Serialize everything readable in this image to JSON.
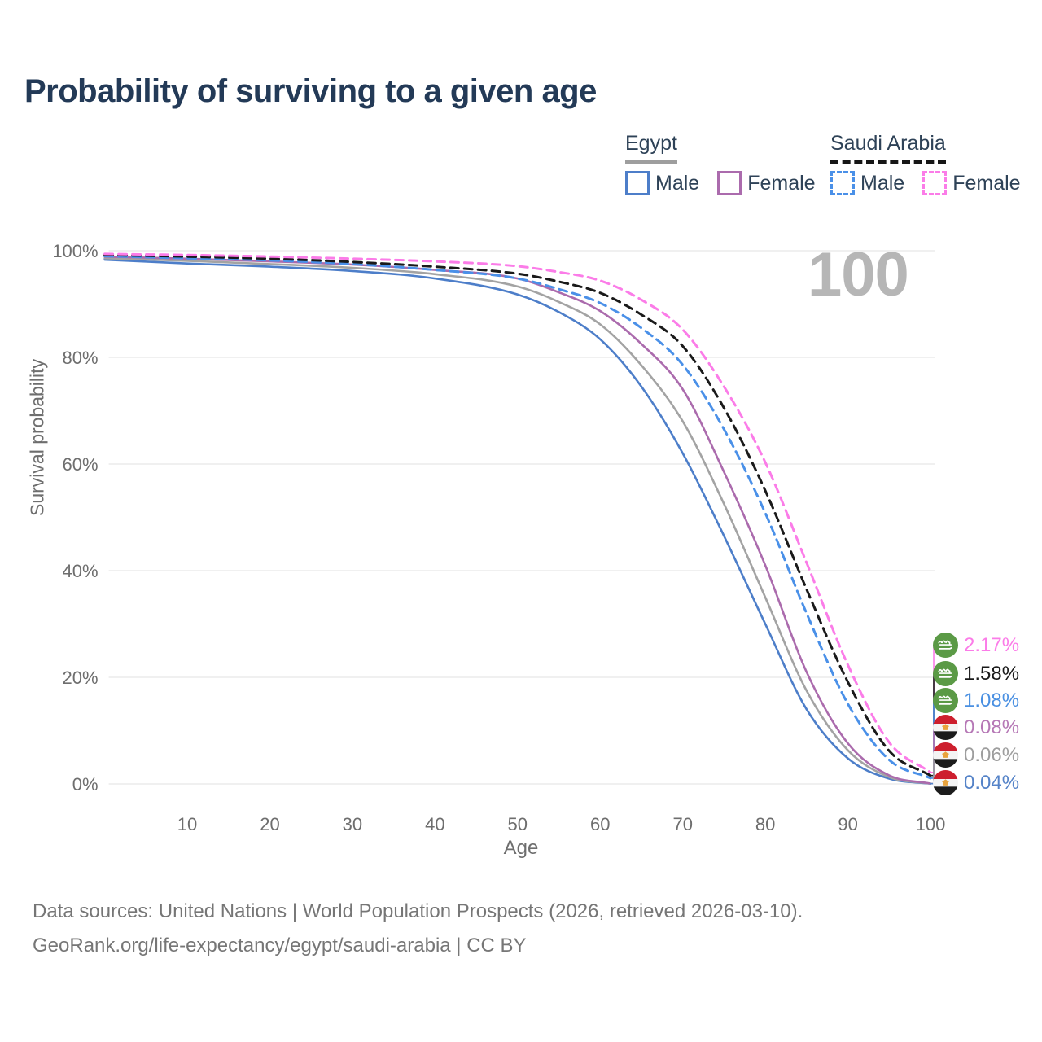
{
  "header": {
    "title": "Probability of surviving to a given age"
  },
  "legend": {
    "groups": [
      {
        "name": "Egypt",
        "underline_style": "solid",
        "underline_color": "#9e9e9e",
        "items": [
          {
            "label": "Male",
            "color": "#4d7ec9",
            "dashed": false
          },
          {
            "label": "Female",
            "color": "#ab6bad",
            "dashed": false
          }
        ]
      },
      {
        "name": "Saudi Arabia",
        "underline_style": "dashed",
        "underline_color": "#161616",
        "items": [
          {
            "label": "Male",
            "color": "#4a90e8",
            "dashed": true
          },
          {
            "label": "Female",
            "color": "#fb7ce8",
            "dashed": true
          }
        ]
      }
    ]
  },
  "watermark": "100",
  "axes": {
    "x_label": "Age",
    "y_label": "Survival probability",
    "x_ticks": [
      10,
      20,
      30,
      40,
      50,
      60,
      70,
      80,
      90,
      100
    ],
    "y_ticks": [
      {
        "label": "0%",
        "value": 0
      },
      {
        "label": "20%",
        "value": 20
      },
      {
        "label": "40%",
        "value": 40
      },
      {
        "label": "60%",
        "value": 60
      },
      {
        "label": "80%",
        "value": 80
      },
      {
        "label": "100%",
        "value": 100
      }
    ]
  },
  "chart_data": {
    "type": "line",
    "title": "Probability of surviving to a given age",
    "xlabel": "Age",
    "ylabel": "Survival probability",
    "xlim": [
      0,
      100
    ],
    "ylim": [
      0,
      100
    ],
    "grid": "horizontal",
    "x": [
      0,
      10,
      20,
      30,
      40,
      50,
      55,
      60,
      65,
      70,
      75,
      80,
      85,
      90,
      95,
      100
    ],
    "series": [
      {
        "name": "Egypt Male",
        "country": "Egypt",
        "sex": "Male",
        "color": "#4d7ec9",
        "dashed": false,
        "values": [
          98.3,
          97.6,
          97.0,
          96.2,
          94.8,
          91.8,
          88.5,
          83.4,
          74.5,
          62.0,
          46.5,
          30.0,
          14.0,
          4.8,
          1.0,
          0.04
        ]
      },
      {
        "name": "Egypt",
        "country": "Egypt",
        "sex": "Both",
        "color": "#a3a3a3",
        "dashed": false,
        "values": [
          98.6,
          98.1,
          97.5,
          96.8,
          95.6,
          93.3,
          90.4,
          86.2,
          78.5,
          68.0,
          52.5,
          35.0,
          17.5,
          6.3,
          1.3,
          0.06
        ]
      },
      {
        "name": "Egypt Female",
        "country": "Egypt",
        "sex": "Female",
        "color": "#ab6bad",
        "dashed": false,
        "values": [
          98.9,
          98.5,
          98.0,
          97.4,
          96.4,
          94.8,
          92.2,
          88.7,
          82.5,
          74.0,
          58.5,
          41.0,
          21.0,
          7.6,
          1.6,
          0.08
        ]
      },
      {
        "name": "Saudi Arabia Male",
        "country": "Saudi Arabia",
        "sex": "Male",
        "color": "#4a90e8",
        "dashed": true,
        "values": [
          99.0,
          98.6,
          98.2,
          97.5,
          96.4,
          94.8,
          92.8,
          90.2,
          85.5,
          78.6,
          66.5,
          50.8,
          32.0,
          15.0,
          4.5,
          1.08
        ]
      },
      {
        "name": "Saudi Arabia",
        "country": "Saudi Arabia",
        "sex": "Both",
        "color": "#1a1a1a",
        "dashed": true,
        "values": [
          99.2,
          98.9,
          98.5,
          97.9,
          97.0,
          95.7,
          94.2,
          92.1,
          88.0,
          82.1,
          70.5,
          55.0,
          36.5,
          19.1,
          6.2,
          1.58
        ]
      },
      {
        "name": "Saudi Arabia Female",
        "country": "Saudi Arabia",
        "sex": "Female",
        "color": "#fb7ce8",
        "dashed": true,
        "values": [
          99.4,
          99.2,
          98.9,
          98.5,
          98.0,
          97.1,
          96.0,
          94.4,
          90.8,
          85.2,
          74.5,
          60.3,
          41.5,
          22.3,
          7.8,
          2.17
        ]
      }
    ],
    "end_labels": [
      {
        "text": "2.17%",
        "color": "#fb7ce8",
        "flag": "saudi-arabia-flag",
        "series": "Saudi Arabia Female"
      },
      {
        "text": "1.58%",
        "color": "#1a1a1a",
        "flag": "saudi-arabia-flag",
        "series": "Saudi Arabia"
      },
      {
        "text": "1.08%",
        "color": "#4a90e2",
        "flag": "saudi-arabia-flag",
        "series": "Saudi Arabia Male"
      },
      {
        "text": "0.08%",
        "color": "#b678b6",
        "flag": "egypt-flag",
        "series": "Egypt Female"
      },
      {
        "text": "0.06%",
        "color": "#9e9e9e",
        "flag": "egypt-flag",
        "series": "Egypt"
      },
      {
        "text": "0.04%",
        "color": "#5583c8",
        "flag": "egypt-flag",
        "series": "Egypt Male"
      }
    ]
  },
  "footer": {
    "line1": "Data sources: United Nations | World Population Prospects (2026, retrieved 2026-03-10).",
    "line2": "GeoRank.org/life-expectancy/egypt/saudi-arabia | CC BY"
  }
}
